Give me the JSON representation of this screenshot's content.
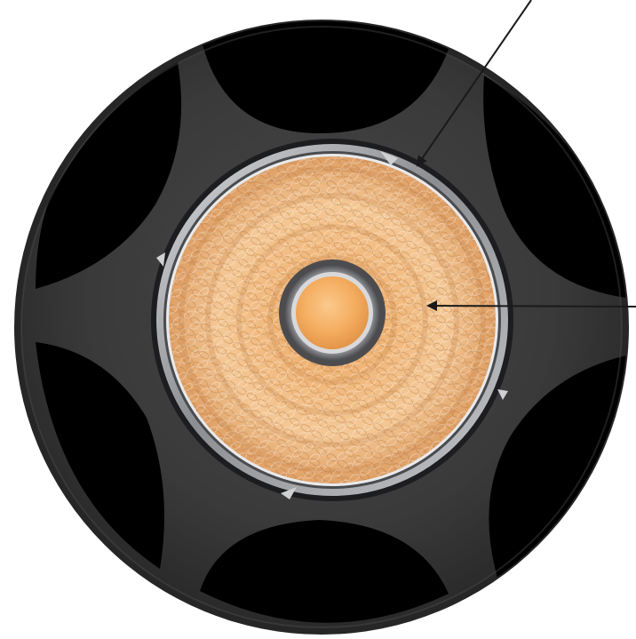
{
  "image": {
    "subject": "downlight-fixture-top-view",
    "colors": {
      "background": "#ffffff",
      "housing": "#3a3a3a",
      "housing_edge": "#2b2b2b",
      "cutout": "#000000",
      "ring_outer": "#b5b7ba",
      "ring_inner": "#5a5b5e",
      "reflector_light": "#f3c58e",
      "reflector_mid": "#e9a15c",
      "reflector_dark": "#a86a33",
      "led_collar": "#6e6e70",
      "led_core": "#f6b36c",
      "callout_line": "#1a1a1a"
    },
    "callouts": [
      {
        "name": "reflector-ring-callout",
        "target": "reflector-retaining-ring"
      },
      {
        "name": "led-chip-callout",
        "target": "led-chip"
      }
    ]
  }
}
